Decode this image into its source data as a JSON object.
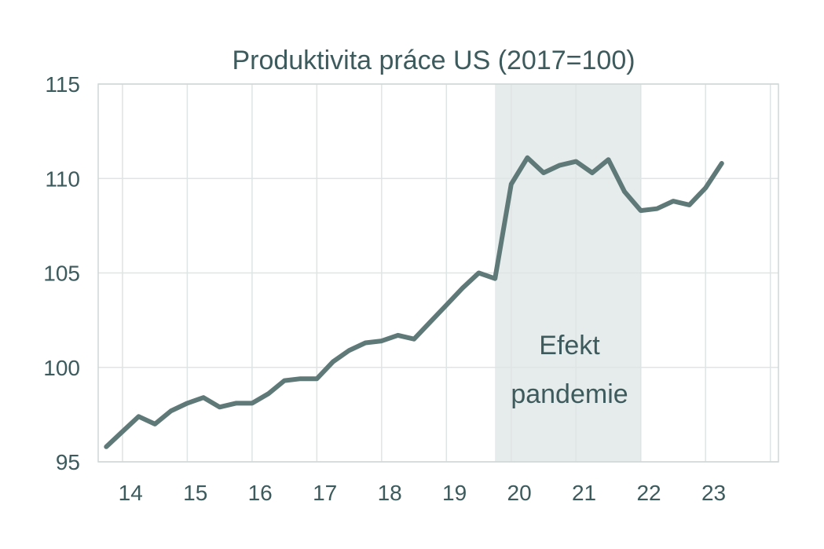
{
  "chart_data": {
    "type": "line",
    "title": "Produktivita práce US (2017=100)",
    "xlabel": "",
    "ylabel": "",
    "ylim": [
      95,
      115
    ],
    "xlim": [
      2013.625,
      2024.125
    ],
    "y_ticks": [
      95,
      100,
      105,
      110,
      115
    ],
    "x_ticks": [
      {
        "label": "14",
        "value": 2014.125
      },
      {
        "label": "15",
        "value": 2015.125
      },
      {
        "label": "16",
        "value": 2016.125
      },
      {
        "label": "17",
        "value": 2017.125
      },
      {
        "label": "18",
        "value": 2018.125
      },
      {
        "label": "19",
        "value": 2019.125
      },
      {
        "label": "20",
        "value": 2020.125
      },
      {
        "label": "21",
        "value": 2021.125
      },
      {
        "label": "22",
        "value": 2022.125
      },
      {
        "label": "23",
        "value": 2023.125
      }
    ],
    "grid": true,
    "line_color": "#5f7878",
    "shade_color": "#e6ebeb",
    "shaded_region": {
      "x_start": 2019.75,
      "x_end": 2022.0
    },
    "annotation": {
      "lines": [
        "Efekt",
        "pandemie"
      ],
      "x": 2020.9,
      "y": 100.7
    },
    "series": [
      {
        "x": [
          2013.75,
          2014.0,
          2014.25,
          2014.5,
          2014.75,
          2015.0,
          2015.25,
          2015.5,
          2015.75,
          2016.0,
          2016.25,
          2016.5,
          2016.75,
          2017.0,
          2017.25,
          2017.5,
          2017.75,
          2018.0,
          2018.25,
          2018.5,
          2018.75,
          2019.0,
          2019.25,
          2019.5,
          2019.75,
          2020.0,
          2020.25,
          2020.5,
          2020.75,
          2021.0,
          2021.25,
          2021.5,
          2021.75,
          2022.0,
          2022.25,
          2022.5,
          2022.75,
          2023.0,
          2023.25
        ],
        "values": [
          95.8,
          96.6,
          97.4,
          97.0,
          97.7,
          98.1,
          98.4,
          97.9,
          98.1,
          98.1,
          98.6,
          99.3,
          99.4,
          99.4,
          100.3,
          100.9,
          101.3,
          101.4,
          101.7,
          101.5,
          102.4,
          103.3,
          104.2,
          105.0,
          104.7,
          109.7,
          111.1,
          110.3,
          110.7,
          110.9,
          110.3,
          111.0,
          109.3,
          108.3,
          108.4,
          108.8,
          108.6,
          109.5,
          110.8
        ]
      }
    ]
  }
}
